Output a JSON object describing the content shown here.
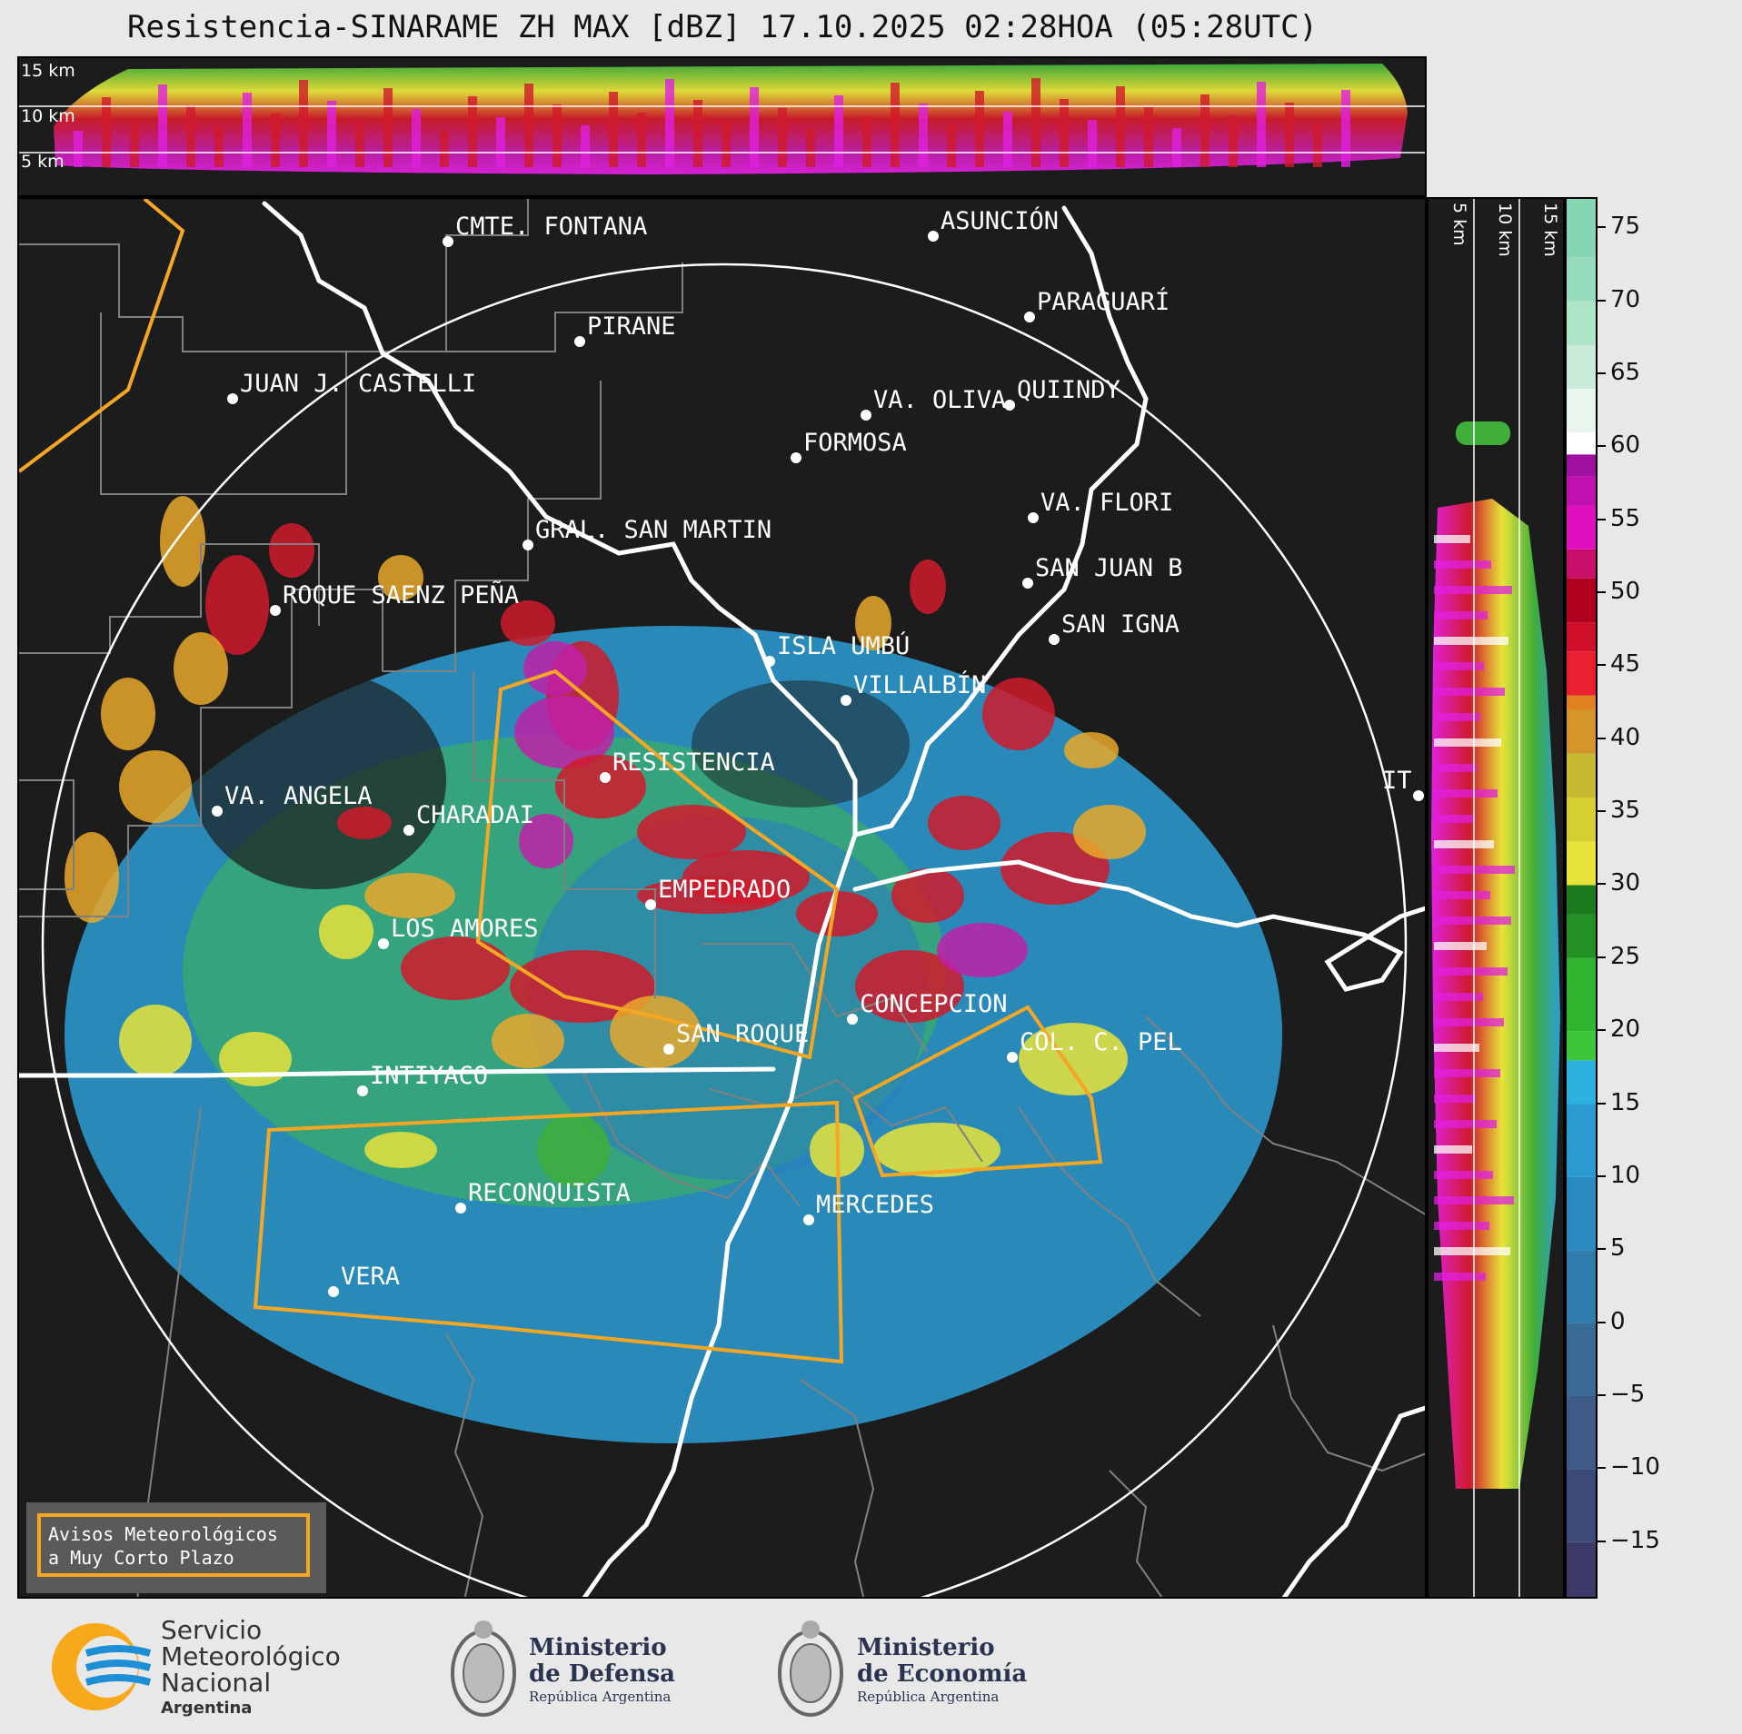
{
  "title": "Resistencia-SINARAME ZH MAX [dBZ] 17.10.2025 02:28HOA (05:28UTC)",
  "top_panel": {
    "altitude_labels": [
      "15 km",
      "10 km",
      "5 km"
    ]
  },
  "side_panel": {
    "altitude_labels": [
      "5 km",
      "10 km",
      "15 km"
    ]
  },
  "colorbar": {
    "unit": "dBZ",
    "ticks": [
      "75",
      "70",
      "65",
      "60",
      "55",
      "50",
      "45",
      "40",
      "35",
      "30",
      "25",
      "20",
      "15",
      "10",
      "5",
      "0",
      "−5",
      "−10",
      "−15"
    ],
    "range": [
      -19,
      77
    ]
  },
  "cities": [
    {
      "name": "CMTE. FONTANA"
    },
    {
      "name": "ASUNCIÓN"
    },
    {
      "name": "PARAGUARÍ"
    },
    {
      "name": "PIRANE"
    },
    {
      "name": "JUAN J. CASTELLI"
    },
    {
      "name": "VA. OLIVA"
    },
    {
      "name": "QUIINDY"
    },
    {
      "name": "FORMOSA"
    },
    {
      "name": "VA. FLORI"
    },
    {
      "name": "GRAL. SAN MARTIN"
    },
    {
      "name": "SAN JUAN B"
    },
    {
      "name": "ROQUE SAENZ PEÑA"
    },
    {
      "name": "SAN IGNA"
    },
    {
      "name": "ISLA UMBÚ"
    },
    {
      "name": "VILLALBÍN"
    },
    {
      "name": "RESISTENCIA"
    },
    {
      "name": "VA. ANGELA"
    },
    {
      "name": "CHARADAI"
    },
    {
      "name": "IT"
    },
    {
      "name": "EMPEDRADO"
    },
    {
      "name": "LOS AMORES"
    },
    {
      "name": "CONCEPCION"
    },
    {
      "name": "COL. C. PEL"
    },
    {
      "name": "SAN ROQUE"
    },
    {
      "name": "INTIYACO"
    },
    {
      "name": "RECONQUISTA"
    },
    {
      "name": "MERCEDES"
    },
    {
      "name": "VERA"
    }
  ],
  "legend": {
    "line1": "Avisos Meteorológicos",
    "line2": "a Muy Corto Plazo",
    "border_color": "#f5a623"
  },
  "footer": {
    "smn": {
      "line1": "Servicio",
      "line2": "Meteorológico",
      "line3": "Nacional",
      "line4": "Argentina"
    },
    "defensa": {
      "line1": "Ministerio",
      "line2": "de Defensa",
      "line3": "República Argentina"
    },
    "economia": {
      "line1": "Ministerio",
      "line2": "de Economía",
      "line3": "República Argentina"
    }
  },
  "colors": {
    "background": "#1c1c1c",
    "range_ring": "#ffffff",
    "warning_polygon": "#f5a623",
    "river": "#ffffff",
    "boundaries": "#808080"
  }
}
